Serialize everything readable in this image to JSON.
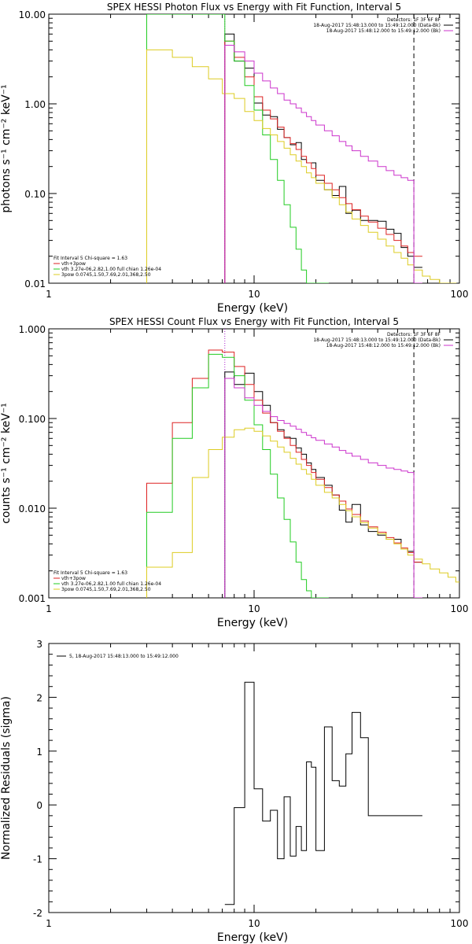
{
  "chart_data": [
    {
      "type": "line",
      "title": "SPEX HESSI Photon Flux vs Energy with Fit Function, Interval 5",
      "xlabel": "Energy (keV)",
      "ylabel": "photons s⁻¹ cm⁻² keV⁻¹",
      "xscale": "log",
      "yscale": "log",
      "xlim": [
        1,
        100
      ],
      "ylim": [
        0.01,
        10
      ],
      "xticks": [
        "1",
        "10",
        "100"
      ],
      "yticks": [
        "0.01",
        "0.10",
        "1.00",
        "10.00"
      ],
      "vlines": [
        {
          "x": 7.2,
          "style": "dotted",
          "color": "#aa22cc"
        },
        {
          "x": 60,
          "style": "dashed",
          "color": "#000000"
        }
      ],
      "legend_top": [
        "Detectors: 1F 3F 6F 8F",
        "18-Aug-2017 15:48:13.000 to 15:49:12.000 (Data-Bk)",
        "18-Aug-2017 15:48:12.000 to 15:49:12.000 (Bk)"
      ],
      "legend_top_colors": [
        "#000000",
        "#000000",
        "#cc33cc"
      ],
      "legend_bottom": [
        "Fit Interval 5   Chi-square = 1.63",
        "vth+3pow",
        "vth 3.27e-06,2.82,1.00  full chian 1.26e-04",
        "3pow 0.0745,1.50,7.69,2.01,368,2.50"
      ],
      "legend_bottom_colors": [
        "#000000",
        "#dd2222",
        "#22cc22",
        "#ddcc22"
      ],
      "series": [
        {
          "color": "#000000",
          "x": [
            7.2,
            8,
            9,
            10,
            11,
            12,
            13,
            14,
            15,
            16,
            17,
            18,
            19,
            20,
            22,
            24,
            26,
            28,
            30,
            33,
            36,
            40,
            44,
            48,
            52,
            56,
            60
          ],
          "y": [
            6.0,
            3.0,
            2.5,
            1.02,
            0.75,
            0.72,
            0.52,
            0.42,
            0.35,
            0.37,
            0.24,
            0.22,
            0.22,
            0.14,
            0.11,
            0.095,
            0.12,
            0.06,
            0.065,
            0.05,
            0.05,
            0.049,
            0.04,
            0.036,
            0.025,
            0.02,
            0.015
          ]
        },
        {
          "color": "#dd2222",
          "x": [
            7.2,
            8,
            9,
            10,
            11,
            12,
            13,
            14,
            15,
            16,
            17,
            18,
            19,
            20,
            22,
            24,
            26,
            28,
            30,
            33,
            36,
            40,
            44,
            48,
            52,
            56,
            60
          ],
          "y": [
            5.0,
            3.3,
            2.0,
            1.2,
            0.85,
            0.68,
            0.55,
            0.42,
            0.36,
            0.31,
            0.26,
            0.22,
            0.19,
            0.16,
            0.13,
            0.11,
            0.09,
            0.077,
            0.066,
            0.056,
            0.048,
            0.041,
            0.035,
            0.03,
            0.026,
            0.022,
            0.02
          ]
        },
        {
          "color": "#22cc22",
          "x": [
            3,
            7.2,
            8,
            9,
            10,
            11,
            12,
            13,
            14,
            15,
            16,
            17,
            18,
            19,
            20,
            21
          ],
          "y": [
            10,
            5.0,
            3.0,
            1.6,
            0.85,
            0.45,
            0.24,
            0.14,
            0.075,
            0.042,
            0.024,
            0.014,
            0.01,
            0.01,
            0.01,
            0.01
          ]
        },
        {
          "color": "#ddcc22",
          "x": [
            3,
            4,
            5,
            6,
            7,
            8,
            9,
            10,
            11,
            12,
            13,
            14,
            15,
            16,
            17,
            18,
            19,
            20,
            22,
            24,
            26,
            28,
            30,
            33,
            36,
            40,
            44,
            48,
            52,
            56,
            60,
            66,
            72,
            80,
            88
          ],
          "y": [
            4.0,
            3.3,
            2.6,
            1.9,
            1.3,
            1.15,
            0.82,
            0.65,
            0.53,
            0.45,
            0.38,
            0.32,
            0.27,
            0.23,
            0.2,
            0.17,
            0.15,
            0.13,
            0.11,
            0.09,
            0.075,
            0.062,
            0.052,
            0.044,
            0.037,
            0.031,
            0.026,
            0.022,
            0.019,
            0.016,
            0.014,
            0.012,
            0.011,
            0.01,
            0.01
          ]
        },
        {
          "color": "#cc33cc",
          "x": [
            7.2,
            8,
            9,
            10,
            11,
            12,
            13,
            14,
            15,
            16,
            17,
            18,
            19,
            20,
            22,
            24,
            26,
            28,
            30,
            33,
            36,
            40,
            44,
            48,
            52,
            56,
            60
          ],
          "y": [
            4.5,
            3.8,
            3.0,
            2.2,
            1.8,
            1.5,
            1.3,
            1.1,
            1.0,
            0.9,
            0.8,
            0.72,
            0.65,
            0.58,
            0.5,
            0.44,
            0.38,
            0.34,
            0.3,
            0.26,
            0.23,
            0.2,
            0.18,
            0.16,
            0.15,
            0.14,
            0.01
          ]
        }
      ]
    },
    {
      "type": "line",
      "title": "SPEX HESSI Count Flux vs Energy with Fit Function, Interval 5",
      "xlabel": "Energy (keV)",
      "ylabel": "counts s⁻¹ cm⁻² keV⁻¹",
      "xscale": "log",
      "yscale": "log",
      "xlim": [
        1,
        100
      ],
      "ylim": [
        0.001,
        1
      ],
      "xticks": [
        "1",
        "10",
        "100"
      ],
      "yticks": [
        "0.001",
        "0.010",
        "0.100",
        "1.000"
      ],
      "vlines": [
        {
          "x": 7.2,
          "style": "dotted",
          "color": "#aa22cc"
        },
        {
          "x": 60,
          "style": "dashed",
          "color": "#000000"
        }
      ],
      "legend_top": [
        "Detectors: 1F 3F 6F 8F",
        "18-Aug-2017 15:48:13.000 to 15:49:12.000 (Data-Bk)",
        "18-Aug-2017 15:48:12.000 to 15:49:12.000 (Bk)"
      ],
      "legend_top_colors": [
        "#000000",
        "#000000",
        "#cc33cc"
      ],
      "legend_bottom": [
        "Fit Interval 5   Chi-square = 1.63",
        "vth+3pow",
        "vth 3.27e-06,2.82,1.00  full chian 1.26e-04",
        "3pow 0.0745,1.50,7.69,2.01,368,2.50"
      ],
      "legend_bottom_colors": [
        "#000000",
        "#dd2222",
        "#22cc22",
        "#ddcc22"
      ],
      "series": [
        {
          "color": "#000000",
          "x": [
            7.2,
            8,
            9,
            10,
            11,
            12,
            13,
            14,
            15,
            16,
            17,
            18,
            19,
            20,
            22,
            24,
            26,
            28,
            30,
            33,
            36,
            40,
            44,
            48,
            52,
            56,
            60
          ],
          "y": [
            0.33,
            0.24,
            0.32,
            0.2,
            0.14,
            0.09,
            0.075,
            0.062,
            0.06,
            0.047,
            0.04,
            0.032,
            0.027,
            0.022,
            0.018,
            0.014,
            0.0095,
            0.007,
            0.011,
            0.0065,
            0.0055,
            0.005,
            0.0045,
            0.0045,
            0.0035,
            0.0033,
            0.0025
          ]
        },
        {
          "color": "#dd2222",
          "x": [
            3,
            4,
            5,
            6,
            7,
            8,
            9,
            10,
            11,
            12,
            13,
            14,
            15,
            16,
            17,
            18,
            19,
            20,
            22,
            24,
            26,
            28,
            30,
            33,
            36,
            40,
            44,
            48,
            52,
            56,
            60
          ],
          "y": [
            0.019,
            0.09,
            0.28,
            0.58,
            0.55,
            0.38,
            0.24,
            0.16,
            0.115,
            0.09,
            0.072,
            0.06,
            0.05,
            0.042,
            0.035,
            0.03,
            0.025,
            0.021,
            0.017,
            0.014,
            0.012,
            0.0098,
            0.0085,
            0.0072,
            0.0062,
            0.0054,
            0.0047,
            0.0041,
            0.0036,
            0.0032,
            0.0025
          ]
        },
        {
          "color": "#22cc22",
          "x": [
            3,
            4,
            5,
            6,
            7,
            8,
            9,
            10,
            11,
            12,
            13,
            14,
            15,
            16,
            17,
            18,
            19,
            20,
            21
          ],
          "y": [
            0.009,
            0.06,
            0.22,
            0.52,
            0.48,
            0.3,
            0.16,
            0.085,
            0.045,
            0.024,
            0.013,
            0.0075,
            0.0042,
            0.0025,
            0.0016,
            0.0012,
            0.001,
            0.001,
            0.001
          ]
        },
        {
          "color": "#ddcc22",
          "x": [
            3,
            4,
            5,
            6,
            7,
            8,
            9,
            10,
            11,
            12,
            13,
            14,
            15,
            16,
            17,
            18,
            19,
            20,
            22,
            24,
            26,
            28,
            30,
            33,
            36,
            40,
            44,
            48,
            52,
            56,
            60,
            66,
            72,
            80,
            88,
            96
          ],
          "y": [
            0.0022,
            0.0032,
            0.022,
            0.045,
            0.062,
            0.075,
            0.078,
            0.072,
            0.064,
            0.056,
            0.048,
            0.042,
            0.036,
            0.031,
            0.027,
            0.024,
            0.021,
            0.018,
            0.015,
            0.013,
            0.011,
            0.0094,
            0.008,
            0.0069,
            0.006,
            0.0052,
            0.0045,
            0.004,
            0.0035,
            0.003,
            0.0027,
            0.0024,
            0.0021,
            0.0019,
            0.0017,
            0.0015
          ]
        },
        {
          "color": "#cc33cc",
          "x": [
            7.2,
            8,
            9,
            10,
            11,
            12,
            13,
            14,
            15,
            16,
            17,
            18,
            19,
            20,
            22,
            24,
            26,
            28,
            30,
            33,
            36,
            40,
            44,
            48,
            52,
            56,
            60
          ],
          "y": [
            0.28,
            0.22,
            0.17,
            0.14,
            0.12,
            0.105,
            0.095,
            0.088,
            0.082,
            0.076,
            0.07,
            0.065,
            0.061,
            0.057,
            0.052,
            0.048,
            0.044,
            0.041,
            0.038,
            0.035,
            0.032,
            0.03,
            0.028,
            0.027,
            0.026,
            0.025,
            0.001
          ]
        }
      ]
    },
    {
      "type": "line",
      "title": "",
      "xlabel": "Energy (keV)",
      "ylabel": "Normalized Residuals (sigma)",
      "xscale": "log",
      "yscale": "linear",
      "xlim": [
        1,
        100
      ],
      "ylim": [
        -2,
        3
      ],
      "xticks": [
        "1",
        "10",
        "100"
      ],
      "yticks": [
        "-2",
        "-1",
        "0",
        "1",
        "2",
        "3"
      ],
      "legend_top": [
        "5, 18-Aug-2017 15:48:13.000 to 15:49:12.000"
      ],
      "legend_top_colors": [
        "#000000"
      ],
      "series": [
        {
          "color": "#000000",
          "x": [
            7.2,
            8,
            9,
            10,
            11,
            12,
            13,
            14,
            15,
            16,
            17,
            18,
            19,
            20,
            22,
            24,
            26,
            28,
            30,
            33,
            36,
            40,
            44,
            48,
            52,
            56,
            60
          ],
          "y": [
            -1.85,
            -0.05,
            2.28,
            0.3,
            -0.3,
            -0.1,
            -1.0,
            0.15,
            -0.95,
            -0.4,
            -0.85,
            0.8,
            0.7,
            -0.85,
            1.45,
            0.45,
            0.35,
            0.95,
            1.72,
            1.25,
            -0.2,
            -0.2,
            -0.2,
            -0.2,
            -0.2,
            -0.2,
            -0.2
          ]
        }
      ]
    }
  ]
}
